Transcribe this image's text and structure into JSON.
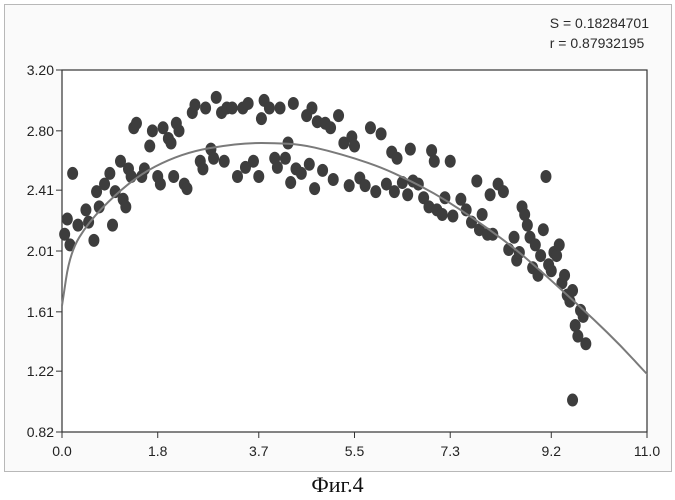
{
  "stats": {
    "s_text": "S = 0.18284701",
    "r_text": "r = 0.87932195"
  },
  "caption": "Фиг.4",
  "chart_data": {
    "type": "scatter",
    "title": "",
    "xlabel": "",
    "ylabel": "",
    "xlim": [
      0.0,
      11.0
    ],
    "ylim": [
      0.82,
      3.2
    ],
    "x_ticks": [
      "0.0",
      "1.8",
      "3.7",
      "5.5",
      "7.3",
      "9.2",
      "11.0"
    ],
    "x_tick_values": [
      0.0,
      1.8,
      3.7,
      5.5,
      7.3,
      9.2,
      11.0
    ],
    "y_ticks": [
      "3.20",
      "2.80",
      "2.41",
      "2.01",
      "1.61",
      "1.22",
      "0.82"
    ],
    "y_tick_values": [
      3.2,
      2.8,
      2.41,
      2.01,
      1.61,
      1.22,
      0.82
    ],
    "grid": false,
    "points": [
      [
        0.05,
        2.12
      ],
      [
        0.1,
        2.22
      ],
      [
        0.15,
        2.05
      ],
      [
        0.2,
        2.52
      ],
      [
        0.3,
        2.18
      ],
      [
        0.45,
        2.28
      ],
      [
        0.5,
        2.2
      ],
      [
        0.6,
        2.08
      ],
      [
        0.65,
        2.4
      ],
      [
        0.7,
        2.3
      ],
      [
        0.8,
        2.45
      ],
      [
        0.9,
        2.52
      ],
      [
        0.95,
        2.18
      ],
      [
        1.0,
        2.4
      ],
      [
        1.1,
        2.6
      ],
      [
        1.15,
        2.35
      ],
      [
        1.2,
        2.3
      ],
      [
        1.25,
        2.55
      ],
      [
        1.3,
        2.5
      ],
      [
        1.35,
        2.82
      ],
      [
        1.4,
        2.85
      ],
      [
        1.5,
        2.5
      ],
      [
        1.55,
        2.55
      ],
      [
        1.65,
        2.7
      ],
      [
        1.7,
        2.8
      ],
      [
        1.8,
        2.5
      ],
      [
        1.85,
        2.45
      ],
      [
        1.9,
        2.82
      ],
      [
        2.0,
        2.75
      ],
      [
        2.05,
        2.72
      ],
      [
        2.1,
        2.5
      ],
      [
        2.15,
        2.85
      ],
      [
        2.2,
        2.8
      ],
      [
        2.3,
        2.45
      ],
      [
        2.35,
        2.42
      ],
      [
        2.45,
        2.92
      ],
      [
        2.5,
        2.97
      ],
      [
        2.6,
        2.6
      ],
      [
        2.65,
        2.55
      ],
      [
        2.7,
        2.95
      ],
      [
        2.8,
        2.68
      ],
      [
        2.85,
        2.62
      ],
      [
        2.9,
        3.02
      ],
      [
        3.0,
        2.92
      ],
      [
        3.05,
        2.6
      ],
      [
        3.1,
        2.95
      ],
      [
        3.2,
        2.95
      ],
      [
        3.3,
        2.5
      ],
      [
        3.4,
        2.95
      ],
      [
        3.45,
        2.56
      ],
      [
        3.5,
        2.98
      ],
      [
        3.6,
        2.6
      ],
      [
        3.7,
        2.5
      ],
      [
        3.75,
        2.88
      ],
      [
        3.8,
        3.0
      ],
      [
        3.9,
        2.95
      ],
      [
        4.0,
        2.62
      ],
      [
        4.05,
        2.56
      ],
      [
        4.1,
        2.95
      ],
      [
        4.2,
        2.62
      ],
      [
        4.25,
        2.72
      ],
      [
        4.3,
        2.46
      ],
      [
        4.35,
        2.98
      ],
      [
        4.4,
        2.55
      ],
      [
        4.5,
        2.52
      ],
      [
        4.6,
        2.9
      ],
      [
        4.65,
        2.58
      ],
      [
        4.7,
        2.95
      ],
      [
        4.75,
        2.42
      ],
      [
        4.8,
        2.86
      ],
      [
        4.9,
        2.54
      ],
      [
        4.95,
        2.85
      ],
      [
        5.05,
        2.82
      ],
      [
        5.1,
        2.48
      ],
      [
        5.2,
        2.9
      ],
      [
        5.3,
        2.72
      ],
      [
        5.4,
        2.44
      ],
      [
        5.45,
        2.76
      ],
      [
        5.5,
        2.7
      ],
      [
        5.6,
        2.49
      ],
      [
        5.7,
        2.44
      ],
      [
        5.8,
        2.82
      ],
      [
        5.9,
        2.4
      ],
      [
        6.0,
        2.78
      ],
      [
        6.1,
        2.45
      ],
      [
        6.2,
        2.66
      ],
      [
        6.25,
        2.4
      ],
      [
        6.3,
        2.62
      ],
      [
        6.4,
        2.46
      ],
      [
        6.5,
        2.38
      ],
      [
        6.55,
        2.68
      ],
      [
        6.6,
        2.47
      ],
      [
        6.7,
        2.45
      ],
      [
        6.8,
        2.36
      ],
      [
        6.9,
        2.3
      ],
      [
        6.95,
        2.67
      ],
      [
        7.0,
        2.6
      ],
      [
        7.05,
        2.28
      ],
      [
        7.15,
        2.25
      ],
      [
        7.2,
        2.36
      ],
      [
        7.3,
        2.6
      ],
      [
        7.35,
        2.24
      ],
      [
        7.5,
        2.35
      ],
      [
        7.6,
        2.28
      ],
      [
        7.7,
        2.2
      ],
      [
        7.8,
        2.47
      ],
      [
        7.85,
        2.15
      ],
      [
        7.9,
        2.25
      ],
      [
        8.0,
        2.12
      ],
      [
        8.05,
        2.38
      ],
      [
        8.1,
        2.12
      ],
      [
        8.2,
        2.45
      ],
      [
        8.3,
        2.4
      ],
      [
        8.4,
        2.02
      ],
      [
        8.5,
        2.1
      ],
      [
        8.55,
        1.95
      ],
      [
        8.6,
        2.0
      ],
      [
        8.65,
        2.3
      ],
      [
        8.7,
        2.25
      ],
      [
        8.75,
        2.18
      ],
      [
        8.8,
        2.1
      ],
      [
        8.85,
        1.9
      ],
      [
        8.9,
        2.05
      ],
      [
        8.95,
        1.85
      ],
      [
        9.0,
        1.98
      ],
      [
        9.05,
        2.15
      ],
      [
        9.1,
        2.5
      ],
      [
        9.15,
        1.92
      ],
      [
        9.2,
        1.88
      ],
      [
        9.25,
        2.0
      ],
      [
        9.3,
        1.98
      ],
      [
        9.35,
        2.05
      ],
      [
        9.4,
        1.8
      ],
      [
        9.45,
        1.85
      ],
      [
        9.5,
        1.72
      ],
      [
        9.55,
        1.68
      ],
      [
        9.6,
        1.75
      ],
      [
        9.65,
        1.52
      ],
      [
        9.7,
        1.45
      ],
      [
        9.75,
        1.62
      ],
      [
        9.8,
        1.58
      ],
      [
        9.85,
        1.4
      ],
      [
        9.6,
        1.03
      ]
    ],
    "fit_curve": [
      [
        0.0,
        1.65
      ],
      [
        0.15,
        2.0
      ],
      [
        0.5,
        2.2
      ],
      [
        1.0,
        2.38
      ],
      [
        1.5,
        2.52
      ],
      [
        2.0,
        2.61
      ],
      [
        2.5,
        2.67
      ],
      [
        3.0,
        2.7
      ],
      [
        3.5,
        2.72
      ],
      [
        4.0,
        2.72
      ],
      [
        4.5,
        2.71
      ],
      [
        5.0,
        2.67
      ],
      [
        5.5,
        2.62
      ],
      [
        6.0,
        2.56
      ],
      [
        6.5,
        2.48
      ],
      [
        7.0,
        2.39
      ],
      [
        7.5,
        2.28
      ],
      [
        8.0,
        2.16
      ],
      [
        8.5,
        2.03
      ],
      [
        9.0,
        1.88
      ],
      [
        9.5,
        1.72
      ],
      [
        10.0,
        1.56
      ],
      [
        10.5,
        1.39
      ],
      [
        11.0,
        1.2
      ]
    ],
    "colors": {
      "points": "#3d3d3d",
      "curve": "#7a7a7a",
      "frame": "#333333"
    }
  }
}
